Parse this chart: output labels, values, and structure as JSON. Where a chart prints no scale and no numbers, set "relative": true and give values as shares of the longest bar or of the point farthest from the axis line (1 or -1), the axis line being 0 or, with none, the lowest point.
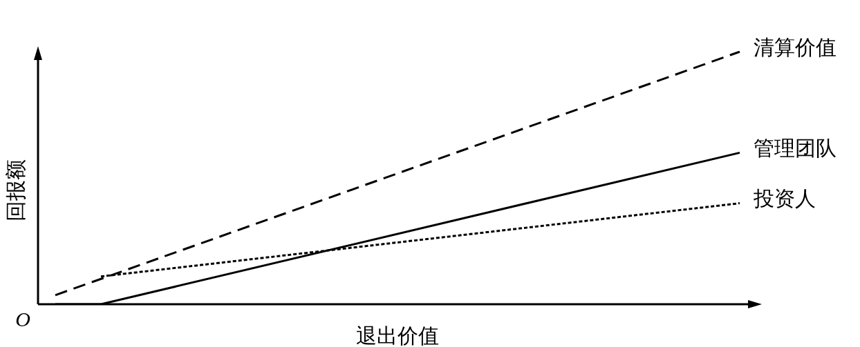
{
  "chart_data": {
    "type": "line",
    "relative": true,
    "xlabel": "退出价值",
    "ylabel": "回报额",
    "annotations": [
      "O"
    ],
    "categories": [
      null,
      null,
      null,
      null,
      null,
      null,
      null,
      null,
      null,
      null,
      null,
      null,
      null,
      null,
      null,
      null
    ],
    "series": [
      {
        "name": "清算价值",
        "color": "#000000",
        "line_style": "dashed",
        "values": [
          0.036,
          null,
          null,
          null,
          null,
          null,
          null,
          null,
          null,
          null,
          null,
          null,
          null,
          null,
          null,
          1
        ]
      },
      {
        "name": "管理团队",
        "color": "#000000",
        "line_style": "solid",
        "values": [
          0,
          0,
          null,
          null,
          null,
          null,
          null,
          null,
          null,
          null,
          null,
          null,
          null,
          null,
          null,
          0.6
        ]
      },
      {
        "name": "投资人",
        "color": "#000000",
        "line_style": "dotted",
        "values": [
          null,
          0.11,
          null,
          null,
          null,
          null,
          null,
          null,
          null,
          null,
          null,
          null,
          null,
          null,
          null,
          0.4
        ]
      }
    ],
    "marker": "none"
  }
}
